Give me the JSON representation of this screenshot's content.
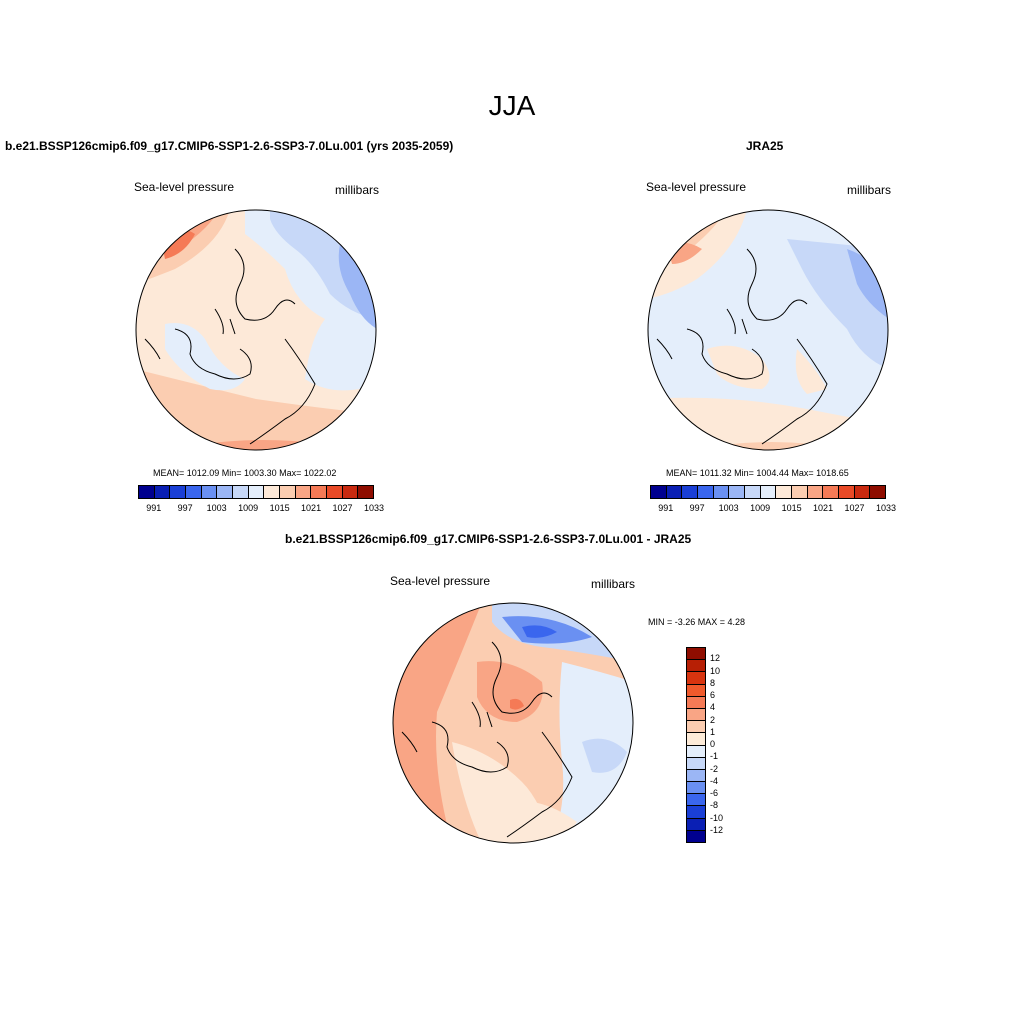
{
  "figure_title": "JJA",
  "panels": {
    "model": {
      "title": "b.e21.BSSP126cmip6.f09_g17.CMIP6-SSP1-2.6-SSP3-7.0Lu.001 (yrs 2035-2059)",
      "variable": "Sea-level pressure",
      "units": "millibars",
      "stats": "MEAN= 1012.09  Min= 1003.30  Max= 1022.02"
    },
    "obs": {
      "title": "JRA25",
      "variable": "Sea-level pressure",
      "units": "millibars",
      "stats": "MEAN= 1011.32  Min= 1004.44  Max= 1018.65"
    },
    "diff": {
      "title": "b.e21.BSSP126cmip6.f09_g17.CMIP6-SSP1-2.6-SSP3-7.0Lu.001 - JRA25",
      "variable": "Sea-level pressure",
      "units": "millibars",
      "minmax": "MIN =  -3.26 MAX =   4.28"
    }
  },
  "slp_colorbar": {
    "labels": [
      "991",
      "997",
      "1003",
      "1009",
      "1015",
      "1021",
      "1027",
      "1033"
    ],
    "colors": [
      "#00008f",
      "#0a1fb4",
      "#1a3fd6",
      "#3a66ee",
      "#6a90f2",
      "#9bb6f5",
      "#c7d8f8",
      "#e4eefb",
      "#fde9d8",
      "#fbcdb1",
      "#f9a585",
      "#f57a56",
      "#e94a27",
      "#c92a10",
      "#8f0d00"
    ]
  },
  "diff_colorbar": {
    "labels": [
      "12",
      "10",
      "8",
      "6",
      "4",
      "2",
      "1",
      "0",
      "-1",
      "-2",
      "-4",
      "-6",
      "-8",
      "-10",
      "-12"
    ],
    "colors": [
      "#8f0d00",
      "#b71f05",
      "#d8340f",
      "#f05a2c",
      "#f57a56",
      "#f9a585",
      "#fbcdb1",
      "#fdebd8",
      "#e4eefb",
      "#c7d8f8",
      "#9bb6f5",
      "#6a90f2",
      "#3a66ee",
      "#1a3fd6",
      "#0a1fb4",
      "#00008f"
    ]
  }
}
